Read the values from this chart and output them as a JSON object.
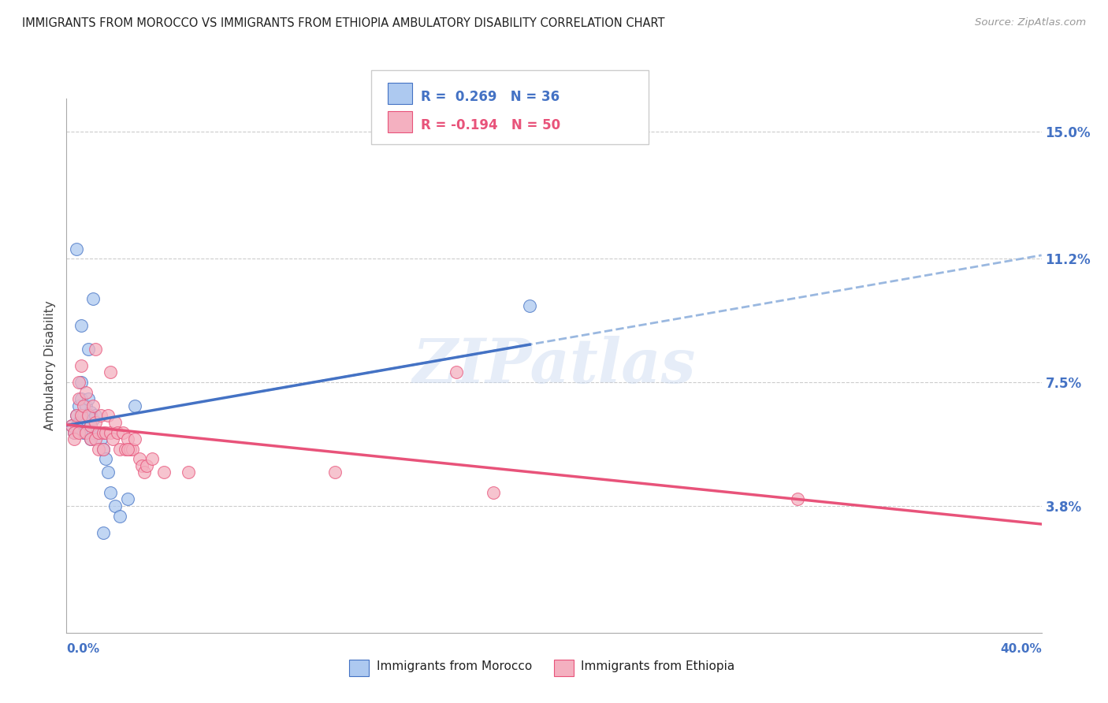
{
  "title": "IMMIGRANTS FROM MOROCCO VS IMMIGRANTS FROM ETHIOPIA AMBULATORY DISABILITY CORRELATION CHART",
  "source": "Source: ZipAtlas.com",
  "ylabel": "Ambulatory Disability",
  "ytick_labels": [
    "15.0%",
    "11.2%",
    "7.5%",
    "3.8%"
  ],
  "ytick_values": [
    0.15,
    0.112,
    0.075,
    0.038
  ],
  "xlim": [
    0.0,
    0.4
  ],
  "ylim": [
    0.0,
    0.16
  ],
  "morocco_color": "#adc9f0",
  "ethiopia_color": "#f4b0c0",
  "morocco_line_color": "#4472c4",
  "ethiopia_line_color": "#e8537a",
  "dashed_line_color": "#9ab8e0",
  "morocco_R": 0.269,
  "morocco_N": 36,
  "ethiopia_R": -0.194,
  "ethiopia_N": 50,
  "watermark": "ZIPatlas",
  "morocco_x": [
    0.002,
    0.003,
    0.004,
    0.004,
    0.005,
    0.005,
    0.006,
    0.006,
    0.007,
    0.007,
    0.008,
    0.008,
    0.009,
    0.009,
    0.01,
    0.01,
    0.01,
    0.011,
    0.011,
    0.012,
    0.013,
    0.014,
    0.015,
    0.016,
    0.017,
    0.018,
    0.02,
    0.022,
    0.025,
    0.028,
    0.19,
    0.004,
    0.006,
    0.009,
    0.011,
    0.015
  ],
  "morocco_y": [
    0.062,
    0.06,
    0.065,
    0.062,
    0.068,
    0.063,
    0.075,
    0.07,
    0.065,
    0.06,
    0.068,
    0.064,
    0.07,
    0.065,
    0.066,
    0.062,
    0.058,
    0.064,
    0.06,
    0.065,
    0.06,
    0.058,
    0.055,
    0.052,
    0.048,
    0.042,
    0.038,
    0.035,
    0.04,
    0.068,
    0.098,
    0.115,
    0.092,
    0.085,
    0.1,
    0.03
  ],
  "ethiopia_x": [
    0.002,
    0.003,
    0.003,
    0.004,
    0.005,
    0.005,
    0.005,
    0.006,
    0.007,
    0.008,
    0.008,
    0.009,
    0.01,
    0.01,
    0.011,
    0.012,
    0.012,
    0.013,
    0.013,
    0.014,
    0.015,
    0.015,
    0.016,
    0.017,
    0.018,
    0.019,
    0.02,
    0.021,
    0.022,
    0.023,
    0.024,
    0.025,
    0.026,
    0.027,
    0.028,
    0.03,
    0.031,
    0.032,
    0.033,
    0.035,
    0.04,
    0.05,
    0.11,
    0.16,
    0.175,
    0.3,
    0.006,
    0.012,
    0.018,
    0.025
  ],
  "ethiopia_y": [
    0.062,
    0.06,
    0.058,
    0.065,
    0.075,
    0.07,
    0.06,
    0.065,
    0.068,
    0.072,
    0.06,
    0.065,
    0.062,
    0.058,
    0.068,
    0.063,
    0.058,
    0.06,
    0.055,
    0.065,
    0.06,
    0.055,
    0.06,
    0.065,
    0.06,
    0.058,
    0.063,
    0.06,
    0.055,
    0.06,
    0.055,
    0.058,
    0.055,
    0.055,
    0.058,
    0.052,
    0.05,
    0.048,
    0.05,
    0.052,
    0.048,
    0.048,
    0.048,
    0.078,
    0.042,
    0.04,
    0.08,
    0.085,
    0.078,
    0.055
  ]
}
